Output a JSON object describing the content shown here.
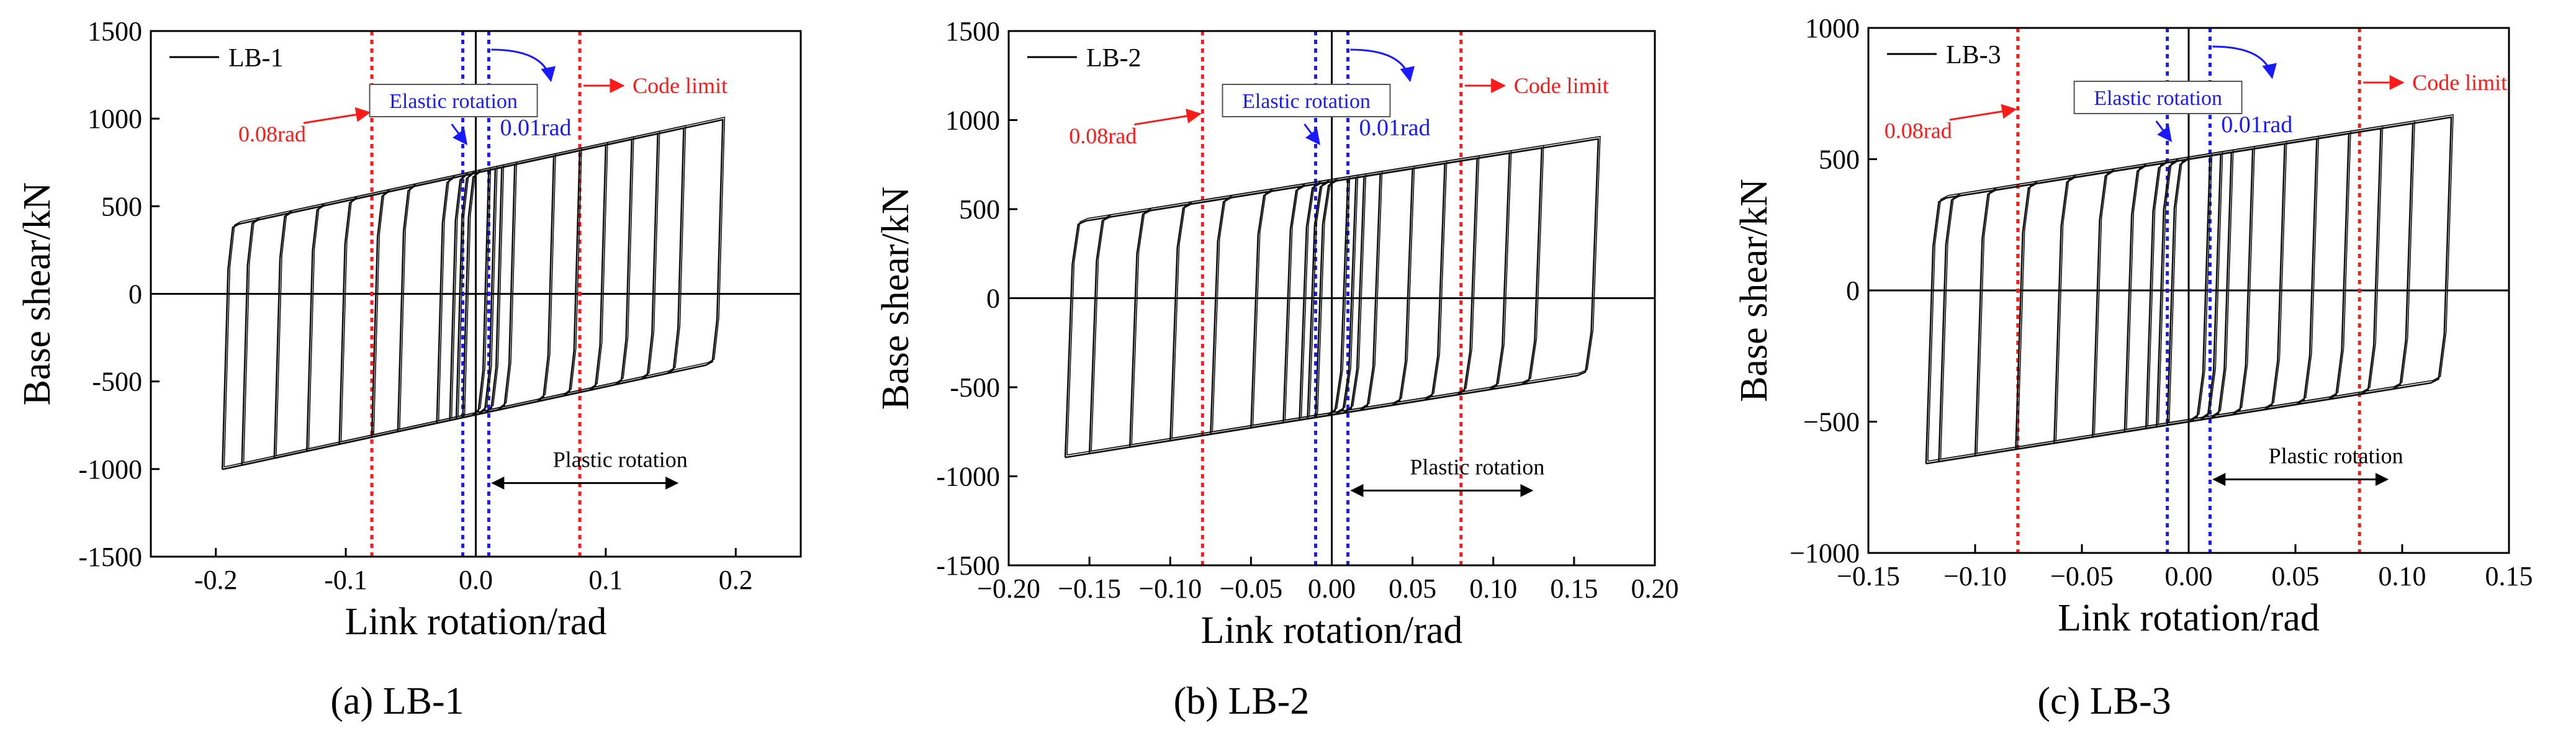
{
  "chart_data": [
    {
      "type": "line",
      "panel_id": "a",
      "caption_letter": "(a)",
      "caption_text": " LB-1",
      "title": "",
      "xlabel": "Link rotation/rad",
      "ylabel": "Base shear/kN",
      "xlim": [
        -0.25,
        0.25
      ],
      "ylim": [
        -1500,
        1500
      ],
      "xticks": [
        -0.2,
        -0.1,
        0.0,
        0.1,
        0.2
      ],
      "xtick_labels": [
        "-0.2",
        "-0.1",
        "0.0",
        "0.1",
        "0.2"
      ],
      "yticks": [
        -1500,
        -1000,
        -500,
        0,
        500,
        1000,
        1500
      ],
      "ytick_labels": [
        "-1500",
        "-1000",
        "-500",
        "0",
        "500",
        "1000",
        "1500"
      ],
      "grid": false,
      "legend": {
        "label": "LB-1",
        "position": "top-left"
      },
      "hysteresis": {
        "amplitudes": [
          0.01,
          0.015,
          0.02,
          0.03,
          0.06,
          0.08,
          0.1,
          0.12,
          0.14,
          0.16,
          0.19
        ],
        "neg_extra": [
          0,
          0,
          0,
          0,
          0,
          0,
          0.005,
          0.01,
          0.015,
          0.02,
          0.005
        ],
        "yield_shear": 690,
        "hardening_kN_per_rad": 1600,
        "elastic_rotation_rad": 0.008
      },
      "ref_lines": [
        {
          "x": -0.08,
          "color": "#ff1a1a",
          "kind": "code-limit"
        },
        {
          "x": 0.08,
          "color": "#ff1a1a",
          "kind": "code-limit"
        },
        {
          "x": -0.01,
          "color": "#1a1aff",
          "kind": "elastic"
        },
        {
          "x": 0.01,
          "color": "#1a1aff",
          "kind": "elastic"
        }
      ],
      "annotations": {
        "rad_008": "0.08rad",
        "rad_001": "0.01rad",
        "elastic_rotation": "Elastic rotation",
        "code_limit": "Code limit",
        "plastic_rotation": "Plastic rotation"
      },
      "colors": {
        "code": "#ff1a1a",
        "elastic": "#1a1aff",
        "curve": "#111111"
      }
    },
    {
      "type": "line",
      "panel_id": "b",
      "caption_letter": "(b)",
      "caption_text": " LB-2",
      "title": "",
      "xlabel": "Link rotation/rad",
      "ylabel": "Base shear/kN",
      "xlim": [
        -0.2,
        0.2
      ],
      "ylim": [
        -1500,
        1500
      ],
      "xticks": [
        -0.2,
        -0.15,
        -0.1,
        -0.05,
        0.0,
        0.05,
        0.1,
        0.15,
        0.2
      ],
      "xtick_labels": [
        "−0.20",
        "−0.15",
        "−0.10",
        "−0.05",
        "0.00",
        "0.05",
        "0.10",
        "0.15",
        "0.20"
      ],
      "yticks": [
        -1500,
        -1000,
        -500,
        0,
        500,
        1000,
        1500
      ],
      "ytick_labels": [
        "-1500",
        "-1000",
        "-500",
        "0",
        "500",
        "1000",
        "1500"
      ],
      "grid": false,
      "legend": {
        "label": "LB-2",
        "position": "top-left"
      },
      "hysteresis": {
        "amplitudes": [
          0.01,
          0.015,
          0.02,
          0.03,
          0.05,
          0.07,
          0.09,
          0.11,
          0.13,
          0.165
        ],
        "neg_extra": [
          0,
          0,
          0,
          0,
          0,
          0.005,
          0.01,
          0.015,
          0.02,
          0.0
        ],
        "yield_shear": 655,
        "hardening_kN_per_rad": 1450,
        "elastic_rotation_rad": 0.008
      },
      "ref_lines": [
        {
          "x": -0.08,
          "color": "#ff1a1a",
          "kind": "code-limit"
        },
        {
          "x": 0.08,
          "color": "#ff1a1a",
          "kind": "code-limit"
        },
        {
          "x": -0.01,
          "color": "#1a1aff",
          "kind": "elastic"
        },
        {
          "x": 0.01,
          "color": "#1a1aff",
          "kind": "elastic"
        }
      ],
      "annotations": {
        "rad_008": "0.08rad",
        "rad_001": "0.01rad",
        "elastic_rotation": "Elastic rotation",
        "code_limit": "Code limit",
        "plastic_rotation": "Plastic rotation"
      },
      "colors": {
        "code": "#ff1a1a",
        "elastic": "#1a1aff",
        "curve": "#111111"
      }
    },
    {
      "type": "line",
      "panel_id": "c",
      "caption_letter": "(c)",
      "caption_text": " LB-3",
      "title": "",
      "xlabel": "Link rotation/rad",
      "ylabel": "Base shear/kN",
      "xlim": [
        -0.15,
        0.15
      ],
      "ylim": [
        -1000,
        1000
      ],
      "xticks": [
        -0.15,
        -0.1,
        -0.05,
        0.0,
        0.05,
        0.1,
        0.15
      ],
      "xtick_labels": [
        "−0.15",
        "−0.10",
        "−0.05",
        "0.00",
        "0.05",
        "0.10",
        "0.15"
      ],
      "yticks": [
        -1000,
        -500,
        0,
        500,
        1000
      ],
      "ytick_labels": [
        "−1000",
        "−500",
        "0",
        "500",
        "1000"
      ],
      "grid": false,
      "legend": {
        "label": "LB-3",
        "position": "top-left"
      },
      "hysteresis": {
        "amplitudes": [
          0.01,
          0.015,
          0.02,
          0.03,
          0.045,
          0.06,
          0.075,
          0.09,
          0.105,
          0.123
        ],
        "neg_extra": [
          0,
          0,
          0,
          0,
          0,
          0.003,
          0.006,
          0.01,
          0.012,
          0.0
        ],
        "yield_shear": 500,
        "hardening_kN_per_rad": 1300,
        "elastic_rotation_rad": 0.006
      },
      "ref_lines": [
        {
          "x": -0.08,
          "color": "#ff1a1a",
          "kind": "code-limit"
        },
        {
          "x": 0.08,
          "color": "#ff1a1a",
          "kind": "code-limit"
        },
        {
          "x": -0.01,
          "color": "#1a1aff",
          "kind": "elastic"
        },
        {
          "x": 0.01,
          "color": "#1a1aff",
          "kind": "elastic"
        }
      ],
      "annotations": {
        "rad_008": "0.08rad",
        "rad_001": "0.01rad",
        "elastic_rotation": "Elastic rotation",
        "code_limit": "Code limit",
        "plastic_rotation": "Plastic rotation"
      },
      "colors": {
        "code": "#ff1a1a",
        "elastic": "#1a1aff",
        "curve": "#111111"
      }
    }
  ]
}
